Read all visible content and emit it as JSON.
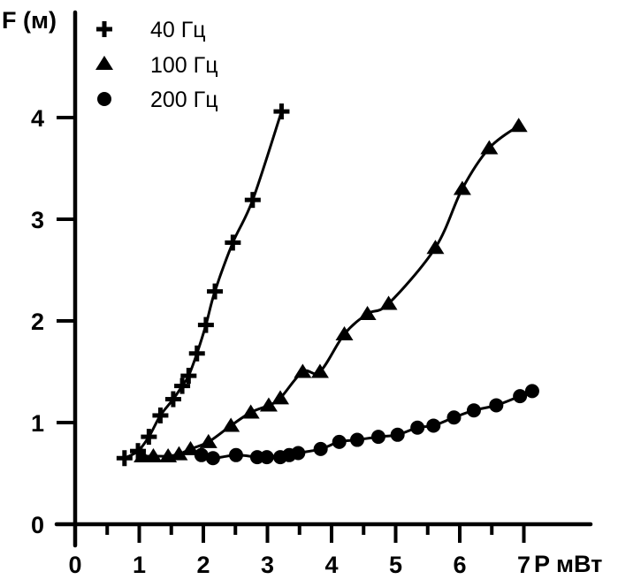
{
  "chart_data": {
    "type": "line",
    "title": "",
    "xlabel": "P мВт",
    "ylabel": "F (м)",
    "xlim": [
      0,
      8
    ],
    "ylim": [
      0,
      4.6
    ],
    "x_ticks": [
      "0",
      "1",
      "2",
      "3",
      "4",
      "5",
      "6",
      "7"
    ],
    "y_ticks": [
      "0",
      "1",
      "2",
      "3",
      "4"
    ],
    "grid": false,
    "legend_position": "top-left",
    "series": [
      {
        "name": "40 Гц",
        "marker": "plus",
        "x": [
          0.77,
          0.98,
          1.15,
          1.33,
          1.53,
          1.67,
          1.77,
          1.9,
          2.04,
          2.18,
          2.46,
          2.77,
          3.22
        ],
        "y": [
          0.65,
          0.72,
          0.86,
          1.07,
          1.23,
          1.36,
          1.46,
          1.68,
          1.96,
          2.29,
          2.77,
          3.19,
          4.06
        ]
      },
      {
        "name": "100 Гц",
        "marker": "triangle",
        "x": [
          1.05,
          1.22,
          1.45,
          1.62,
          1.8,
          2.08,
          2.43,
          2.74,
          3.02,
          3.2,
          3.55,
          3.82,
          4.2,
          4.56,
          4.89,
          5.62,
          6.04,
          6.46,
          6.92
        ],
        "y": [
          0.67,
          0.67,
          0.67,
          0.69,
          0.74,
          0.81,
          0.97,
          1.1,
          1.17,
          1.24,
          1.5,
          1.5,
          1.87,
          2.07,
          2.17,
          2.72,
          3.3,
          3.7,
          3.92
        ]
      },
      {
        "name": "200 Гц",
        "marker": "circle",
        "x": [
          1.97,
          2.15,
          2.51,
          2.84,
          2.99,
          3.2,
          3.34,
          3.48,
          3.83,
          4.12,
          4.4,
          4.73,
          5.03,
          5.34,
          5.59,
          5.91,
          6.22,
          6.57,
          6.94,
          7.13
        ],
        "y": [
          0.68,
          0.65,
          0.68,
          0.66,
          0.66,
          0.66,
          0.68,
          0.7,
          0.74,
          0.81,
          0.83,
          0.86,
          0.88,
          0.95,
          0.97,
          1.05,
          1.12,
          1.17,
          1.26,
          1.31
        ]
      }
    ]
  }
}
